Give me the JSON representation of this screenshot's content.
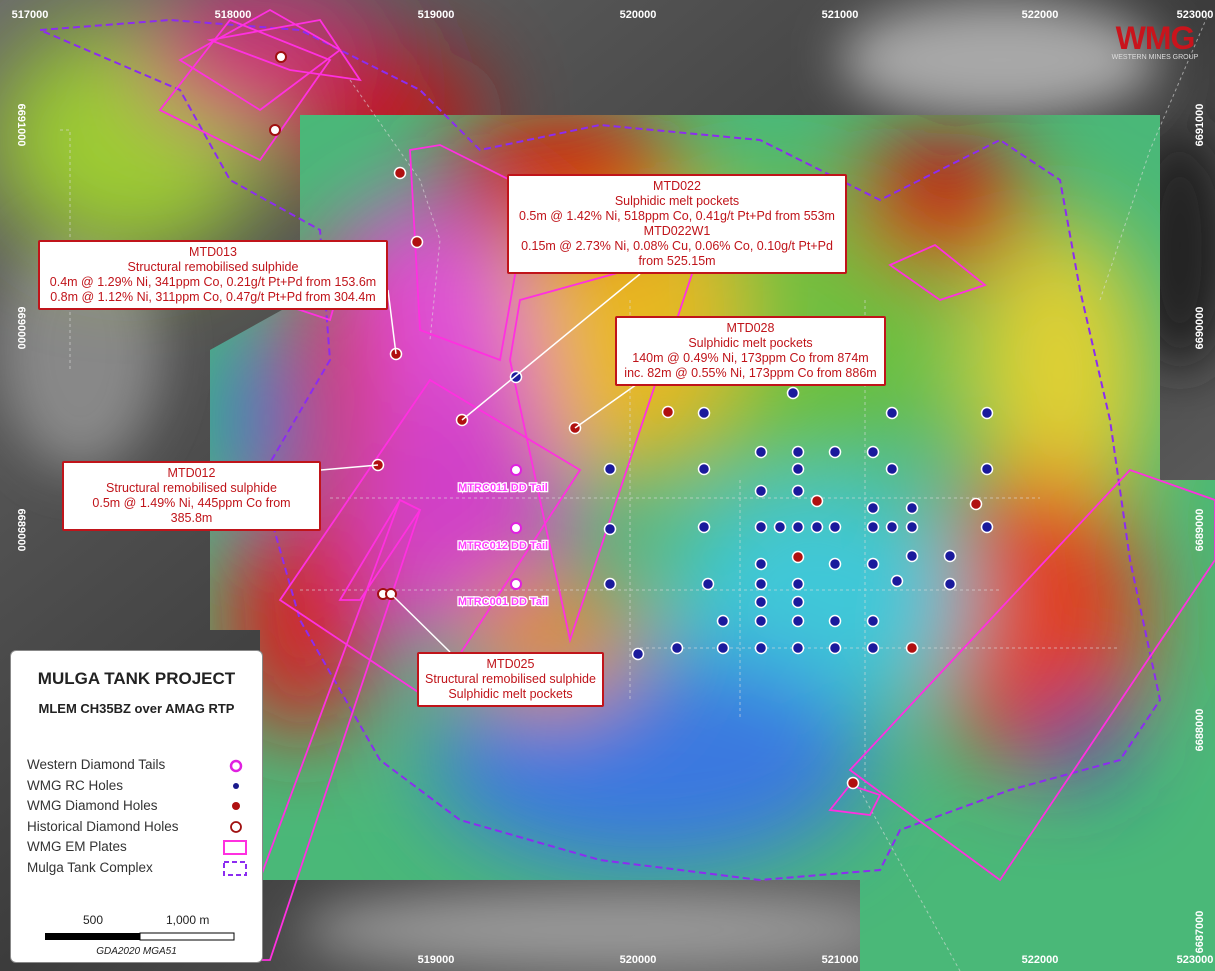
{
  "logo": {
    "name": "WMG",
    "tagline": "WESTERN MINES GROUP"
  },
  "grid_labels": {
    "top": [
      "517000",
      "518000",
      "519000",
      "520000",
      "521000",
      "522000",
      "523000"
    ],
    "bottom": [
      "519000",
      "520000",
      "521000",
      "522000",
      "523000"
    ],
    "left": [
      "6691000",
      "6690000",
      "6689000"
    ],
    "right": [
      "6691000",
      "6690000",
      "6689000",
      "6688000",
      "6687000"
    ]
  },
  "callouts": [
    {
      "lines": [
        "MTD013",
        "Structural remobilised sulphide",
        "0.4m @ 1.29% Ni, 341ppm Co, 0.21g/t Pt+Pd from 153.6m",
        "0.8m @ 1.12% Ni, 311ppm Co, 0.47g/t Pt+Pd from 304.4m"
      ]
    },
    {
      "lines": [
        "MTD022",
        "Sulphidic melt pockets",
        "0.5m @ 1.42% Ni, 518ppm Co, 0.41g/t Pt+Pd from 553m",
        "MTD022W1",
        "0.15m @ 2.73% Ni, 0.08% Cu, 0.06% Co, 0.10g/t Pt+Pd",
        "from 525.15m"
      ]
    },
    {
      "lines": [
        "MTD028",
        "Sulphidic melt pockets",
        "140m @ 0.49% Ni, 173ppm Co from 874m",
        "inc. 82m @ 0.55% Ni, 173ppm Co from 886m"
      ]
    },
    {
      "lines": [
        "MTD012",
        "Structural remobilised sulphide",
        "0.5m @ 1.49% Ni, 445ppm Co from 385.8m"
      ]
    },
    {
      "lines": [
        "MTD025",
        "Structural remobilised sulphide",
        "Sulphidic melt pockets"
      ]
    }
  ],
  "tail_labels": [
    "MTRC011 DD Tail",
    "MTRC012 DD Tail",
    "MTRC001 DD Tail"
  ],
  "legend": {
    "title": "MULGA TANK PROJECT",
    "subtitle": "MLEM CH35BZ over AMAG RTP",
    "items": [
      "Western Diamond Tails",
      "WMG RC Holes",
      "WMG Diamond Holes",
      "Historical Diamond Holes",
      "WMG EM Plates",
      "Mulga Tank Complex"
    ],
    "scale": [
      "500",
      "1,000 m"
    ],
    "crs": "GDA2020 MGA51"
  }
}
